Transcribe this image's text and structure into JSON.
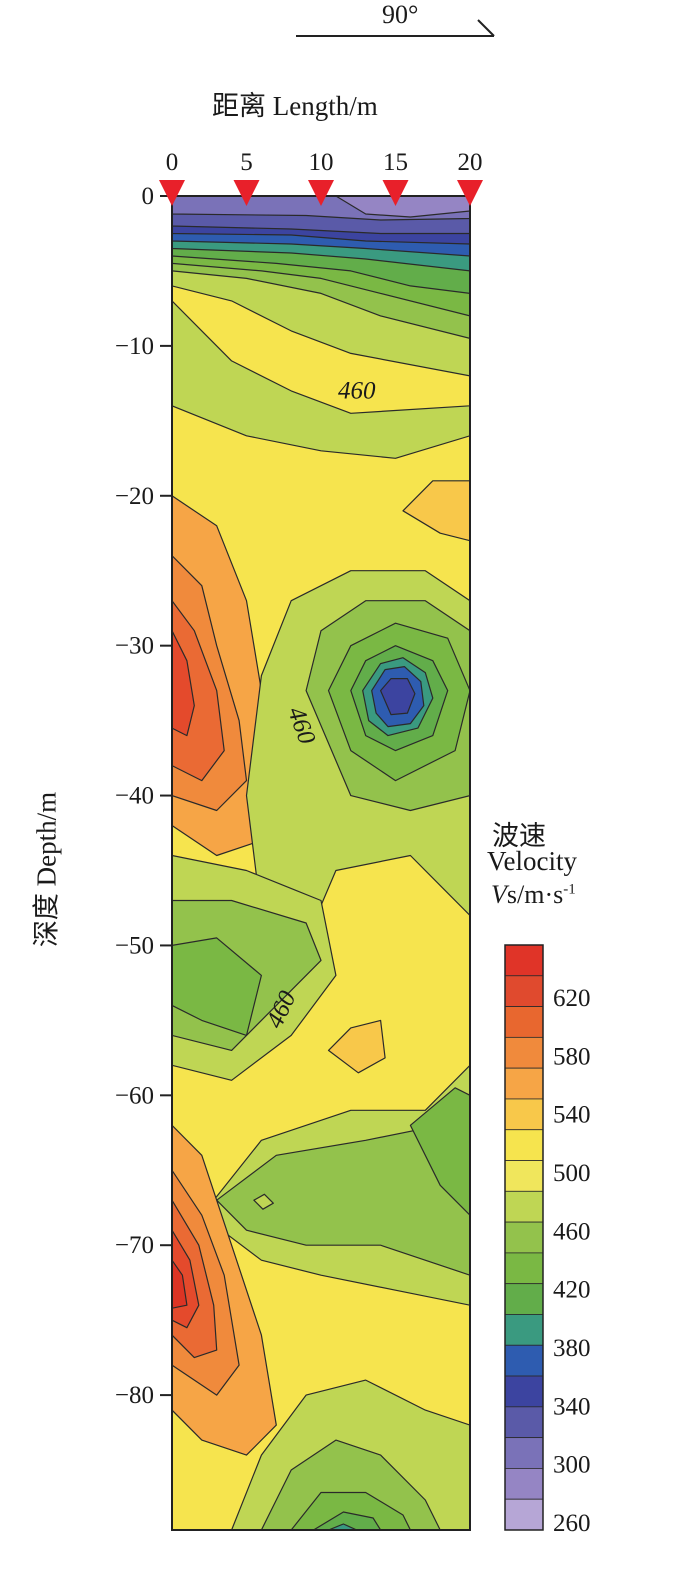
{
  "header": {
    "bearing": "90°",
    "x_axis_title": "距离 Length/m",
    "y_axis_title": "深度 Depth/m"
  },
  "legend": {
    "title_cn": "波速",
    "title_en": "Velocity",
    "unit_italic": "V",
    "unit_rest": "s/m·s",
    "unit_sup": "-1",
    "levels": [
      260,
      300,
      340,
      380,
      420,
      460,
      500,
      540,
      580,
      620
    ],
    "colors": {
      "260": "#b6a6d6",
      "280": "#9585c4",
      "300": "#7a72b8",
      "320": "#5a5aa8",
      "340": "#3c44a0",
      "360": "#2e5cb0",
      "380": "#3a9a80",
      "400": "#62ad4a",
      "420": "#7ab844",
      "440": "#93c24c",
      "460": "#bfd654",
      "480": "#e8e35a",
      "500": "#f6e44e",
      "520": "#f8c84a",
      "540": "#f6a546",
      "560": "#f08a3c",
      "580": "#ea6a34",
      "600": "#e44a2c",
      "620": "#dc3424"
    }
  },
  "chart_data": {
    "type": "heatmap",
    "title": "",
    "xlabel": "距离 Length/m",
    "ylabel": "深度 Depth/m",
    "x_ticks": [
      0,
      5,
      10,
      15,
      20
    ],
    "y_ticks": [
      0,
      -10,
      -20,
      -30,
      -40,
      -50,
      -60,
      -70,
      -80
    ],
    "xlim": [
      0,
      20
    ],
    "ylim": [
      -89,
      0
    ],
    "geophones_x": [
      0,
      5,
      10,
      15,
      20
    ],
    "contour_labels": [
      {
        "text": "460",
        "x": 12.4,
        "y": -13.5
      },
      {
        "text": "460",
        "x": 8.2,
        "y": -35.5
      },
      {
        "text": "460",
        "x": 7.8,
        "y": -54.5
      }
    ],
    "velocity_range": [
      260,
      640
    ],
    "features": [
      {
        "type": "low-velocity zone",
        "x": 15,
        "y": -33,
        "min_value": 340
      },
      {
        "type": "low-velocity layer",
        "x": 15,
        "y": -3,
        "min_value": 280
      },
      {
        "type": "high-velocity zone",
        "x": 0,
        "y": -33,
        "max_value": 600
      },
      {
        "type": "high-velocity zone",
        "x": 0,
        "y": -72,
        "max_value": 640
      }
    ]
  }
}
